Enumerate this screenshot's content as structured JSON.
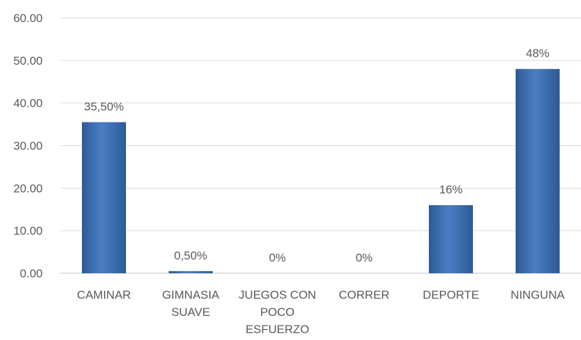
{
  "chart_data": {
    "type": "bar",
    "categories": [
      [
        "CAMINAR"
      ],
      [
        "GIMNASIA",
        "SUAVE"
      ],
      [
        "JUEGOS CON",
        "POCO",
        "ESFUERZO"
      ],
      [
        "CORRER"
      ],
      [
        "DEPORTE"
      ],
      [
        "NINGUNA"
      ]
    ],
    "values": [
      35.5,
      0.5,
      0,
      0,
      16,
      48
    ],
    "data_labels": [
      "35,50%",
      "0,50%",
      "0%",
      "0%",
      "16%",
      "48%"
    ],
    "yticks": [
      "0.00",
      "10.00",
      "20.00",
      "30.00",
      "40.00",
      "50.00",
      "60.00"
    ],
    "ylim": [
      0,
      60
    ],
    "grid": true,
    "legend": "none",
    "bar_color": "#4a7ec4",
    "bar_color_dark": "#2d5a96"
  }
}
